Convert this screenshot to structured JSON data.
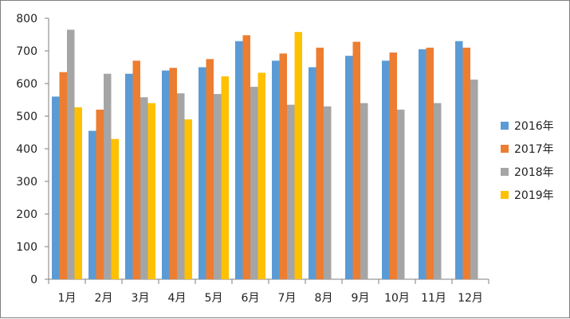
{
  "chart_data": {
    "type": "bar",
    "title": "",
    "xlabel": "",
    "ylabel": "",
    "categories": [
      "1月",
      "2月",
      "3月",
      "4月",
      "5月",
      "6月",
      "7月",
      "8月",
      "9月",
      "10月",
      "11月",
      "12月"
    ],
    "series": [
      {
        "name": "2016年",
        "color": "#5b9bd5",
        "values": [
          560,
          455,
          630,
          640,
          650,
          730,
          670,
          650,
          685,
          670,
          705,
          730
        ]
      },
      {
        "name": "2017年",
        "color": "#ed7d31",
        "values": [
          635,
          520,
          670,
          648,
          675,
          748,
          692,
          710,
          728,
          695,
          710,
          710
        ]
      },
      {
        "name": "2018年",
        "color": "#a5a5a5",
        "values": [
          765,
          630,
          558,
          570,
          568,
          590,
          535,
          530,
          540,
          520,
          540,
          612
        ]
      },
      {
        "name": "2019年",
        "color": "#ffc000",
        "values": [
          527,
          430,
          540,
          490,
          622,
          633,
          758,
          null,
          null,
          null,
          null,
          null
        ]
      }
    ],
    "ylim": [
      0,
      800
    ],
    "yticks": [
      0,
      100,
      200,
      300,
      400,
      500,
      600,
      700,
      800
    ],
    "grid": false,
    "legend_position": "right"
  }
}
